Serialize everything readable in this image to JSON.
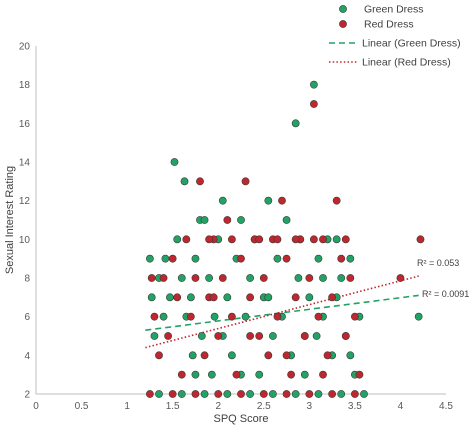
{
  "chart_data": {
    "type": "scatter",
    "xlabel": "SPQ Score",
    "ylabel": "Sexual Interest Rating",
    "xlim": [
      0,
      4.5
    ],
    "ylim": [
      2,
      20
    ],
    "x_ticks": [
      "0",
      "0.5",
      "1",
      "1.5",
      "2",
      "2.5",
      "3",
      "3.5",
      "4",
      "4.5"
    ],
    "y_ticks": [
      "2",
      "4",
      "6",
      "8",
      "10",
      "12",
      "14",
      "16",
      "18",
      "20"
    ],
    "grid": false,
    "legend_position": "top-right",
    "legend": {
      "green": "Green Dress",
      "red": "Red Dress",
      "linear_green": "Linear (Green Dress)",
      "linear_red": "Linear (Red Dress)"
    },
    "annotations": {
      "red_r2": "R² = 0.053",
      "green_r2": "R² = 0.0091"
    },
    "colors": {
      "green": "#21A366",
      "red": "#C0262D",
      "green_line": "#21A366",
      "red_line": "#C0262D",
      "marker_edge": "#3a3a3a"
    },
    "trendlines": {
      "green": {
        "x": [
          1.2,
          4.2
        ],
        "y": [
          5.3,
          7.1
        ]
      },
      "red": {
        "x": [
          1.2,
          4.2
        ],
        "y": [
          4.4,
          8.1
        ]
      }
    },
    "series": [
      {
        "name": "Green Dress",
        "color_key": "green",
        "points": [
          [
            1.25,
            9
          ],
          [
            1.27,
            7
          ],
          [
            1.3,
            5
          ],
          [
            1.35,
            8
          ],
          [
            1.4,
            6
          ],
          [
            1.42,
            9
          ],
          [
            1.47,
            7
          ],
          [
            1.52,
            14
          ],
          [
            1.55,
            10
          ],
          [
            1.6,
            8
          ],
          [
            1.63,
            13
          ],
          [
            1.65,
            6
          ],
          [
            1.7,
            7
          ],
          [
            1.72,
            4
          ],
          [
            1.75,
            9
          ],
          [
            1.8,
            11
          ],
          [
            1.82,
            5
          ],
          [
            1.85,
            11
          ],
          [
            1.9,
            8
          ],
          [
            1.93,
            3
          ],
          [
            1.96,
            6
          ],
          [
            2.0,
            10
          ],
          [
            2.05,
            12
          ],
          [
            2.1,
            7
          ],
          [
            2.15,
            4
          ],
          [
            2.2,
            9
          ],
          [
            2.25,
            11
          ],
          [
            2.3,
            6
          ],
          [
            2.35,
            8
          ],
          [
            2.4,
            10
          ],
          [
            2.45,
            3
          ],
          [
            2.5,
            7
          ],
          [
            2.55,
            12
          ],
          [
            2.6,
            5
          ],
          [
            2.65,
            9
          ],
          [
            2.7,
            6
          ],
          [
            2.75,
            11
          ],
          [
            2.8,
            4
          ],
          [
            2.85,
            16
          ],
          [
            2.88,
            8
          ],
          [
            2.9,
            10
          ],
          [
            2.95,
            3
          ],
          [
            3.0,
            7
          ],
          [
            3.05,
            18
          ],
          [
            3.08,
            5
          ],
          [
            3.1,
            9
          ],
          [
            3.15,
            6
          ],
          [
            3.2,
            10
          ],
          [
            3.25,
            4
          ],
          [
            3.3,
            7
          ],
          [
            3.35,
            8
          ],
          [
            3.4,
            5
          ],
          [
            3.45,
            9
          ],
          [
            3.5,
            3
          ],
          [
            3.55,
            6
          ],
          [
            3.6,
            2
          ],
          [
            1.35,
            2
          ],
          [
            1.6,
            2
          ],
          [
            1.85,
            2
          ],
          [
            2.1,
            2
          ],
          [
            2.35,
            2
          ],
          [
            2.6,
            2
          ],
          [
            2.85,
            2
          ],
          [
            3.1,
            2
          ],
          [
            3.35,
            2
          ],
          [
            4.2,
            6
          ],
          [
            2.05,
            5
          ],
          [
            2.55,
            7
          ],
          [
            3.15,
            8
          ],
          [
            1.75,
            3
          ],
          [
            2.95,
            5
          ],
          [
            3.3,
            10
          ],
          [
            2.25,
            3
          ],
          [
            3.45,
            4
          ]
        ]
      },
      {
        "name": "Red Dress",
        "color_key": "red",
        "points": [
          [
            1.27,
            8
          ],
          [
            1.3,
            6
          ],
          [
            1.35,
            4
          ],
          [
            1.4,
            8
          ],
          [
            1.45,
            5
          ],
          [
            1.5,
            9
          ],
          [
            1.55,
            7
          ],
          [
            1.6,
            3
          ],
          [
            1.65,
            10
          ],
          [
            1.7,
            6
          ],
          [
            1.75,
            8
          ],
          [
            1.8,
            13
          ],
          [
            1.85,
            4
          ],
          [
            1.9,
            7
          ],
          [
            1.95,
            10
          ],
          [
            2.0,
            5
          ],
          [
            2.05,
            8
          ],
          [
            2.1,
            11
          ],
          [
            2.15,
            6
          ],
          [
            2.2,
            3
          ],
          [
            2.25,
            9
          ],
          [
            2.3,
            13
          ],
          [
            2.35,
            7
          ],
          [
            2.4,
            10
          ],
          [
            2.45,
            5
          ],
          [
            2.5,
            8
          ],
          [
            2.55,
            4
          ],
          [
            2.6,
            10
          ],
          [
            2.65,
            6
          ],
          [
            2.7,
            12
          ],
          [
            2.75,
            9
          ],
          [
            2.8,
            3
          ],
          [
            2.85,
            7
          ],
          [
            2.9,
            10
          ],
          [
            2.95,
            5
          ],
          [
            3.0,
            8
          ],
          [
            3.05,
            17
          ],
          [
            3.1,
            6
          ],
          [
            3.15,
            10
          ],
          [
            3.2,
            4
          ],
          [
            3.25,
            7
          ],
          [
            3.3,
            12
          ],
          [
            3.35,
            9
          ],
          [
            3.4,
            5
          ],
          [
            3.45,
            8
          ],
          [
            3.5,
            6
          ],
          [
            3.55,
            3
          ],
          [
            1.25,
            2
          ],
          [
            1.5,
            2
          ],
          [
            1.75,
            2
          ],
          [
            2.0,
            2
          ],
          [
            2.25,
            2
          ],
          [
            2.5,
            2
          ],
          [
            2.75,
            2
          ],
          [
            3.0,
            2
          ],
          [
            3.25,
            2
          ],
          [
            3.5,
            2
          ],
          [
            4.0,
            8
          ],
          [
            4.22,
            10
          ],
          [
            1.9,
            10
          ],
          [
            2.15,
            10
          ],
          [
            2.45,
            10
          ],
          [
            2.65,
            10
          ],
          [
            2.85,
            10
          ],
          [
            3.05,
            10
          ],
          [
            2.35,
            5
          ],
          [
            2.75,
            4
          ],
          [
            3.15,
            3
          ],
          [
            1.95,
            7
          ],
          [
            3.4,
            10
          ]
        ]
      }
    ]
  }
}
